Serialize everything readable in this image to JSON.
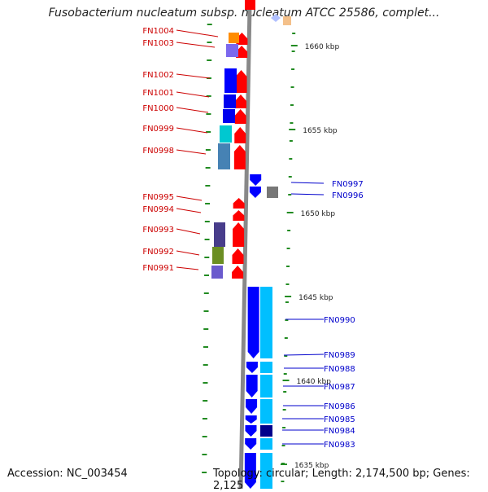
{
  "title": "Fusobacterium nucleatum subsp. nucleatum ATCC 25586, complet...",
  "footer": {
    "accession": "Accession: NC_003454",
    "topology": "Topology: circular; Length: 2,174,500 bp; Genes: 2,125"
  },
  "colors": {
    "backbone": "#888888",
    "forward_label": "#cc0000",
    "reverse_label": "#0000cc",
    "ruler_tick": "#228b22",
    "red_gene": "#ff0000",
    "blue_gene": "#0000ff",
    "cyan_gene": "#00bfff"
  },
  "ruler": {
    "labels": [
      "1660 kbp",
      "1655 kbp",
      "1650 kbp",
      "1645 kbp",
      "1640 kbp",
      "1635 kbp"
    ]
  },
  "forward_genes": [
    {
      "label": "FN1004"
    },
    {
      "label": "FN1003"
    },
    {
      "label": "FN1002"
    },
    {
      "label": "FN1001"
    },
    {
      "label": "FN1000"
    },
    {
      "label": "FN0999"
    },
    {
      "label": "FN0998"
    },
    {
      "label": "FN0995"
    },
    {
      "label": "FN0994"
    },
    {
      "label": "FN0993"
    },
    {
      "label": "FN0992"
    },
    {
      "label": "FN0991"
    }
  ],
  "reverse_genes": [
    {
      "label": "FN0997"
    },
    {
      "label": "FN0996"
    },
    {
      "label": "FN0990"
    },
    {
      "label": "FN0989"
    },
    {
      "label": "FN0988"
    },
    {
      "label": "FN0987"
    },
    {
      "label": "FN0986"
    },
    {
      "label": "FN0985"
    },
    {
      "label": "FN0984"
    },
    {
      "label": "FN0983"
    }
  ]
}
